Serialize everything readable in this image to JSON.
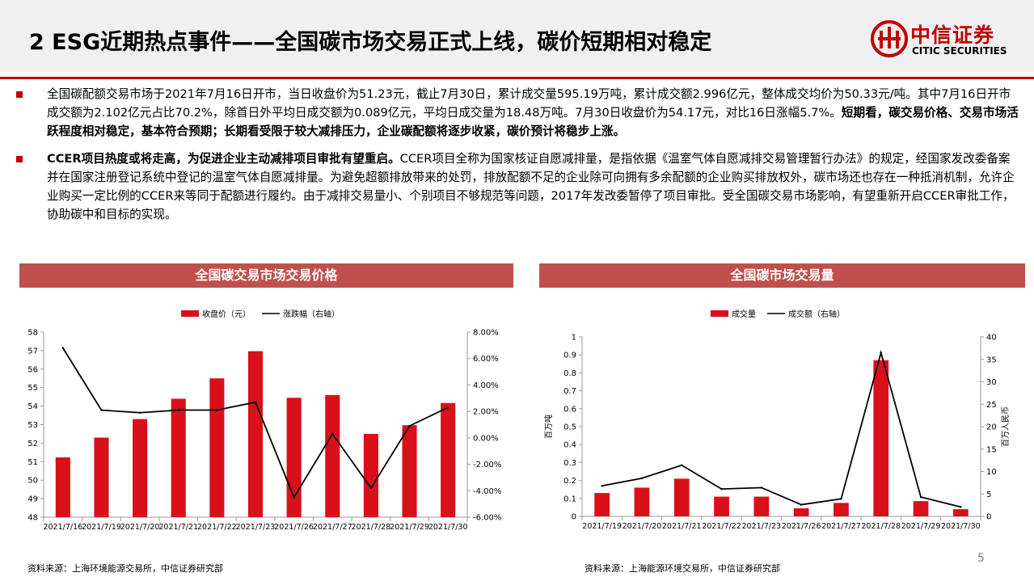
{
  "header": {
    "title": "2 ESG近期热点事件——全国碳市场交易正式上线，碳价短期相对稳定",
    "logo_cn": "中信证券",
    "logo_en": "CITIC SECURITIES"
  },
  "bullets": [
    {
      "segments": [
        {
          "text": "全国碳配额交易市场于2021年7月16日开市，当日收盘价为51.23元，截止7月30日，累计成交量595.19万吨，累计成交额2.996亿元，整体成交均价为50.33元/吨。其中7月16日开市成交额为2.102亿元占比70.2%，除首日外平均日成交额为0.089亿元，平均日成交量为18.48万吨。7月30日收盘价为54.17元，对比16日涨幅5.7%。",
          "bold": false
        },
        {
          "text": "短期看，碳交易价格、交易市场活跃程度相对稳定，基本符合预期；长期看受限于较大减排压力，企业碳配额将逐步收紧，碳价预计将稳步上涨。",
          "bold": true
        }
      ]
    },
    {
      "segments": [
        {
          "text": "CCER项目热度或将走高，为促进企业主动减排项目审批有望重启。",
          "bold": true
        },
        {
          "text": "CCER项目全称为国家核证自愿减排量，是指依据《温室气体自愿减排交易管理暂行办法》的规定，经国家发改委备案并在国家注册登记系统中登记的温室气体自愿减排量。为避免超额排放带来的处罚，排放配额不足的企业除可向拥有多余配额的企业购买排放权外，碳市场还也存在一种抵消机制，允许企业购买一定比例的CCER来等同于配额进行履约。由于减排交易量小、个别项目不够规范等问题，2017年发改委暂停了项目审批。受全国碳交易市场影响，有望重新开启CCER审批工作，协助碳中和目标的实现。",
          "bold": false
        }
      ]
    }
  ],
  "left_panel": {
    "banner": "全国碳交易市场交易价格",
    "source": "资料来源：上海环境能源交易所，中信证券研究部"
  },
  "right_panel": {
    "banner": "全国碳市场交易量",
    "source": "资料来源：上海能源环境交易所，中信证券研究部"
  },
  "page_number": "5",
  "colors": {
    "brand_red": "#c00000",
    "banner_red": "#c0504d",
    "bar_red": "#d9101a",
    "line": "#000000"
  },
  "chart_data": [
    {
      "type": "bar",
      "categories": [
        "2021/7/16",
        "2021/7/19",
        "2021/7/20",
        "2021/7/21",
        "2021/7/22",
        "2021/7/23",
        "2021/7/26",
        "2021/7/27",
        "2021/7/28",
        "2021/7/29",
        "2021/7/30"
      ],
      "series": [
        {
          "name": "收盘价（元）",
          "type": "bar",
          "axis": "left",
          "values": [
            51.23,
            52.3,
            53.3,
            54.4,
            55.5,
            56.97,
            54.45,
            54.6,
            52.5,
            52.97,
            54.17
          ]
        },
        {
          "name": "涨跌幅（右轴）",
          "type": "line",
          "axis": "right",
          "values": [
            6.8,
            2.1,
            1.9,
            2.1,
            2.1,
            2.7,
            -4.5,
            0.3,
            -3.8,
            0.9,
            2.3
          ]
        }
      ],
      "y_left": {
        "min": 48,
        "max": 58,
        "step": 1,
        "ticks": [
          "48",
          "49",
          "50",
          "51",
          "52",
          "53",
          "54",
          "55",
          "56",
          "57",
          "58"
        ]
      },
      "y_right": {
        "min": -6,
        "max": 8,
        "step": 2,
        "ticks": [
          "-6.00%",
          "-4.00%",
          "-2.00%",
          "0.00%",
          "2.00%",
          "4.00%",
          "6.00%",
          "8.00%"
        ]
      },
      "legend_position": "top-center",
      "grid": false
    },
    {
      "type": "bar",
      "categories": [
        "2021/7/19",
        "2021/7/20",
        "2021/7/21",
        "2021/7/22",
        "2021/7/23",
        "2021/7/26",
        "2021/7/27",
        "2021/7/28",
        "2021/7/29",
        "2021/7/30"
      ],
      "series": [
        {
          "name": "成交量",
          "type": "bar",
          "axis": "left",
          "values": [
            0.13,
            0.16,
            0.21,
            0.11,
            0.11,
            0.045,
            0.075,
            0.87,
            0.085,
            0.04
          ]
        },
        {
          "name": "成交额（右轴）",
          "type": "line",
          "axis": "right",
          "values": [
            6.8,
            8.5,
            11.4,
            6.1,
            6.4,
            2.6,
            3.9,
            36.5,
            4.3,
            2.1
          ]
        }
      ],
      "ylabel_left": "百万吨",
      "ylabel_right": "百万人民币",
      "y_left": {
        "min": 0,
        "max": 1,
        "step": 0.1,
        "ticks": [
          "0",
          "0.1",
          "0.2",
          "0.3",
          "0.4",
          "0.5",
          "0.6",
          "0.7",
          "0.8",
          "0.9",
          "1"
        ]
      },
      "y_right": {
        "min": 0,
        "max": 40,
        "step": 5,
        "ticks": [
          "0",
          "5",
          "10",
          "15",
          "20",
          "25",
          "30",
          "35",
          "40"
        ]
      },
      "legend_position": "top-center",
      "grid": false
    }
  ]
}
